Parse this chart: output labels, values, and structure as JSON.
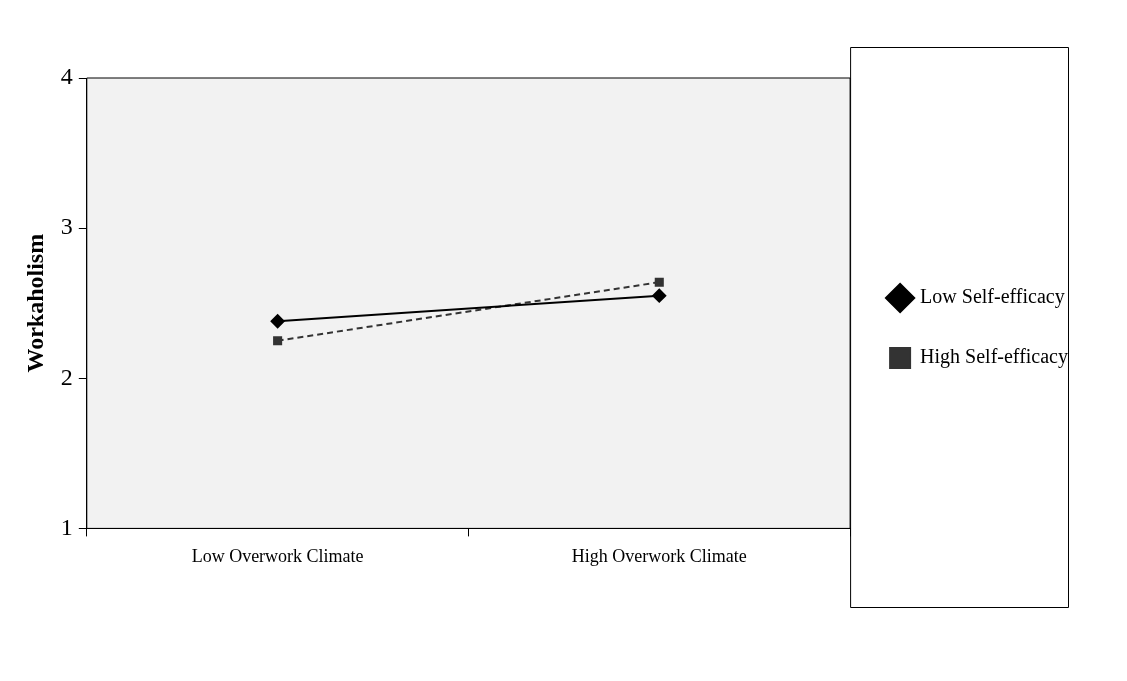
{
  "chart_data": {
    "type": "line",
    "ylabel": "Workaholism",
    "categories": [
      "Low Overwork Climate",
      "High Overwork Climate"
    ],
    "series": [
      {
        "name": "Low Self-efficacy",
        "color": "#000000",
        "values": [
          2.38,
          2.55
        ],
        "marker": "diamond",
        "line_style": "solid"
      },
      {
        "name": "High Self-efficacy",
        "color": "#333333",
        "values": [
          2.25,
          2.64
        ],
        "marker": "square",
        "line_style": "dashed"
      }
    ],
    "ylim": [
      1,
      4
    ],
    "yticks": [
      1,
      2,
      3,
      4
    ],
    "grid": false,
    "legend": "right"
  }
}
